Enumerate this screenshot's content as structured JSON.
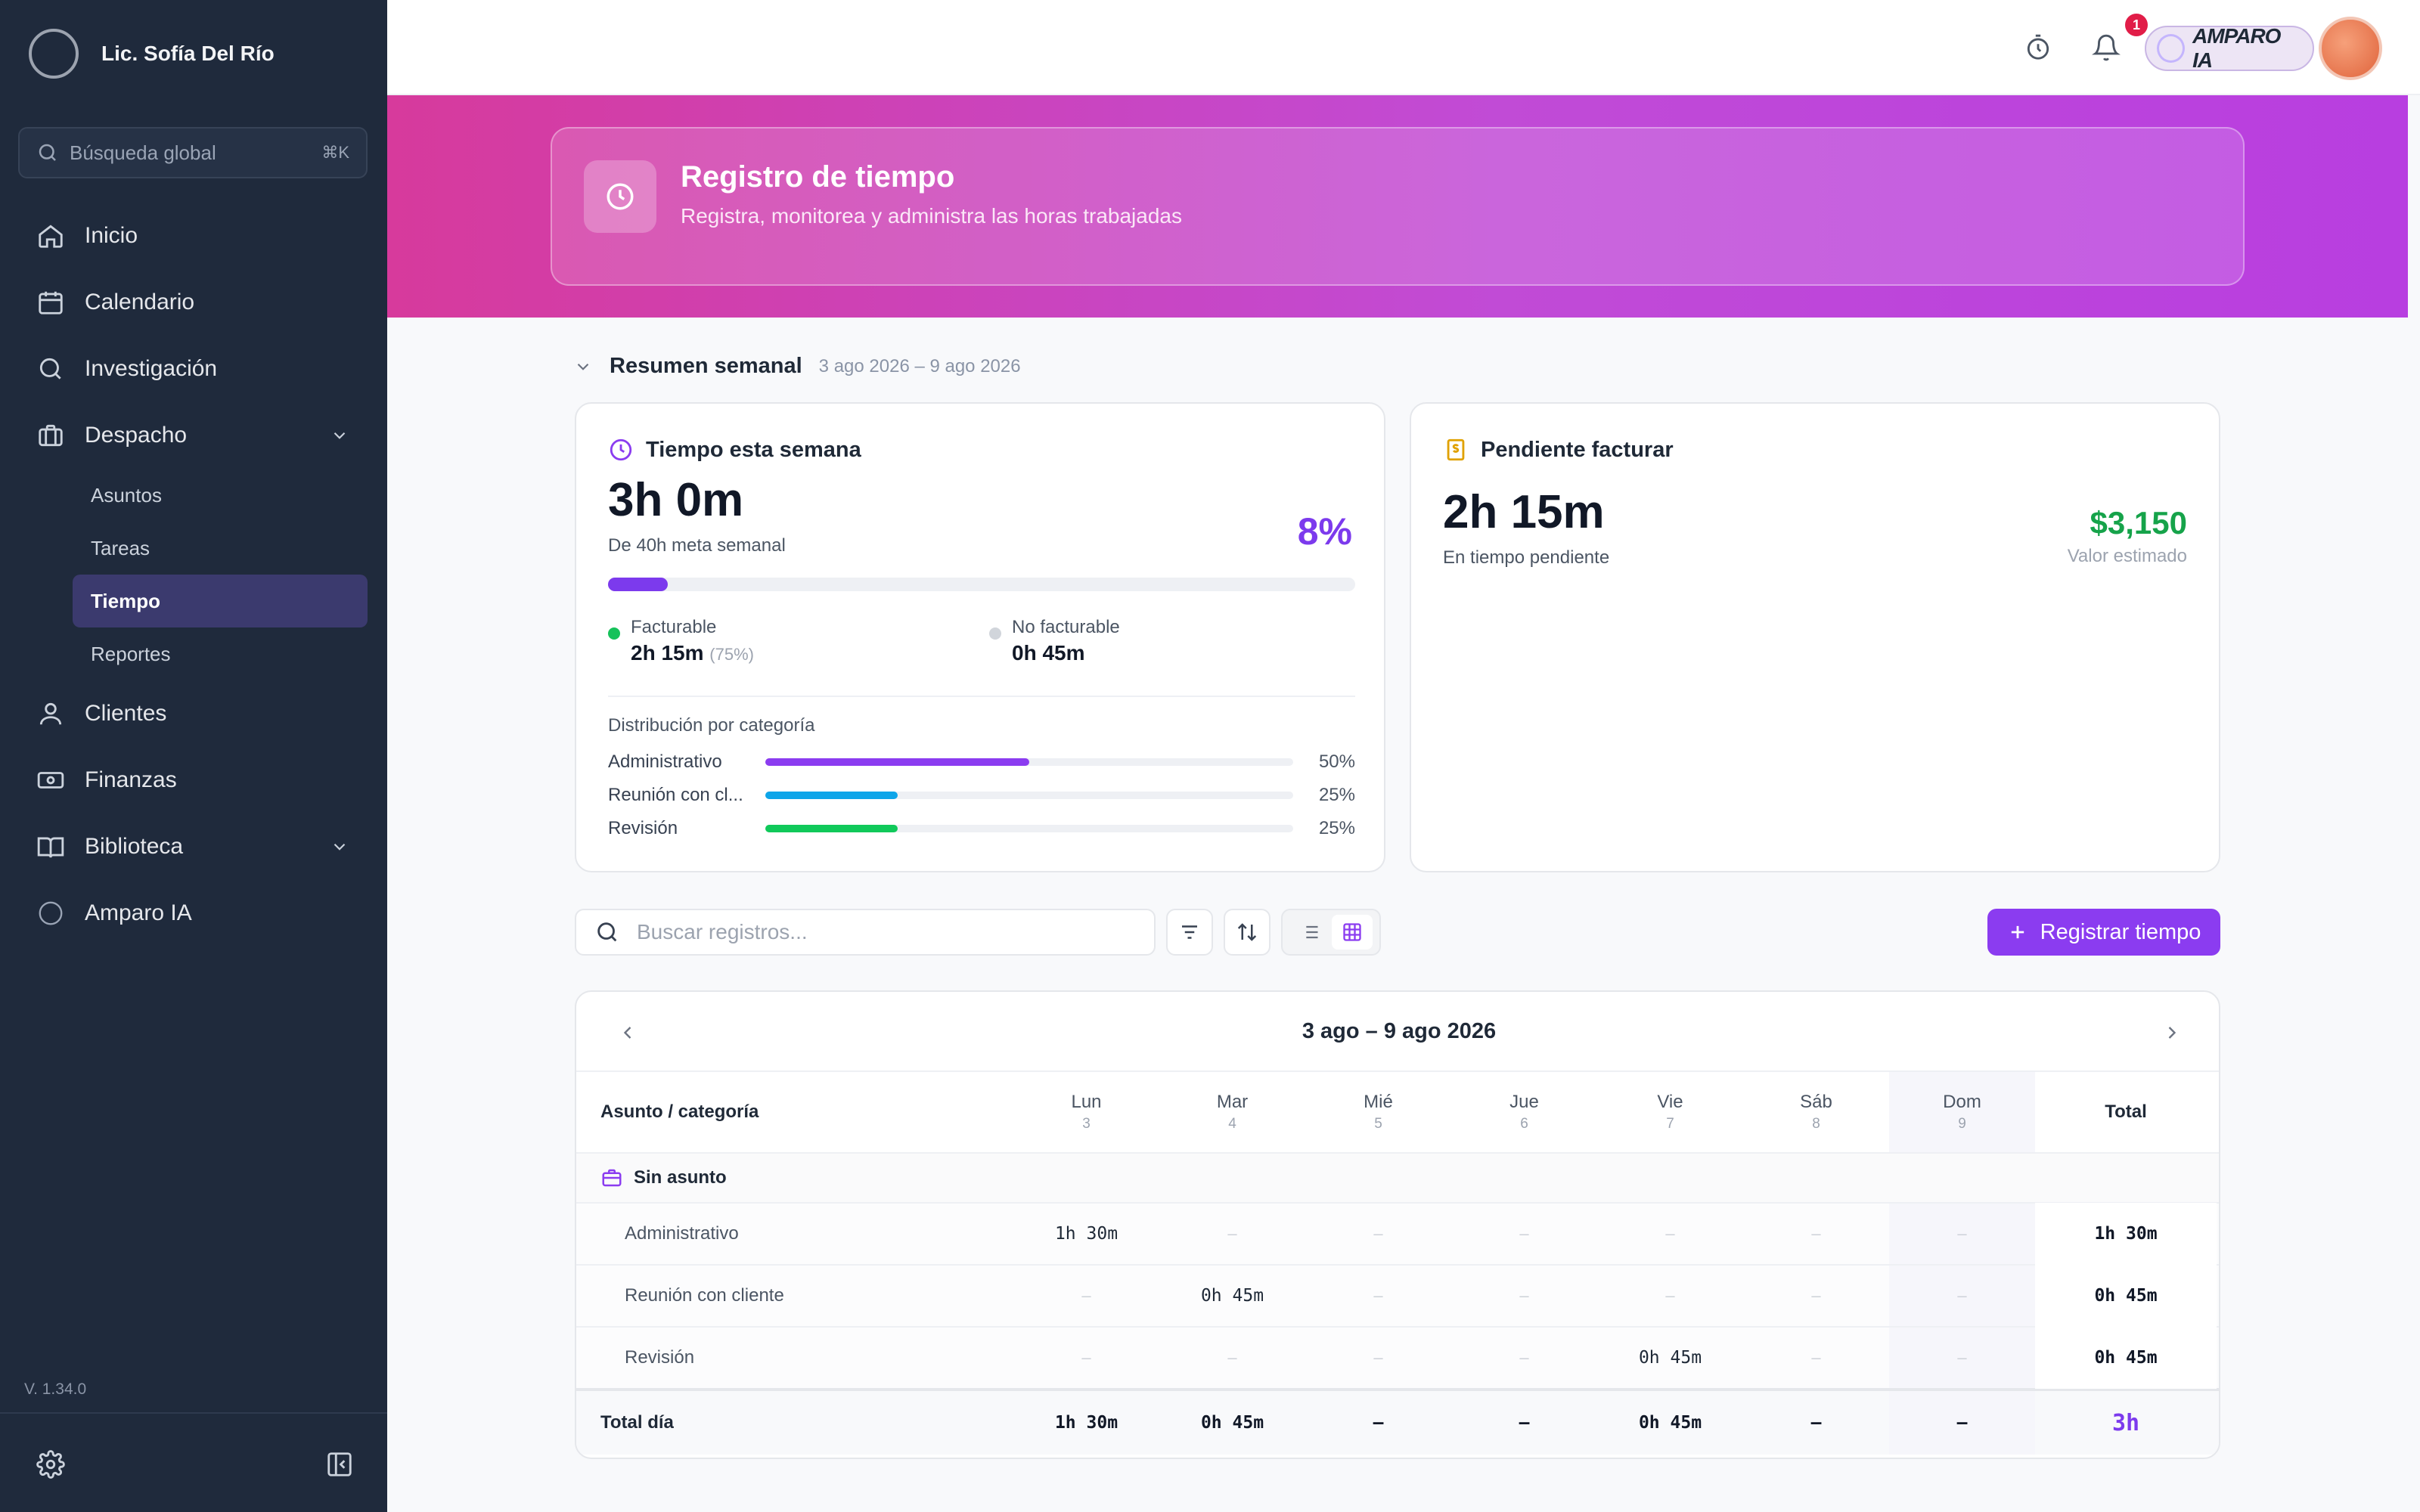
{
  "sidebar": {
    "user_name": "Lic. Sofía Del Río",
    "search": {
      "placeholder": "Búsqueda global",
      "shortcut": "⌘K"
    },
    "nav": [
      {
        "label": "Inicio",
        "icon": "home-icon"
      },
      {
        "label": "Calendario",
        "icon": "calendar-icon"
      },
      {
        "label": "Investigación",
        "icon": "search-icon"
      },
      {
        "label": "Despacho",
        "icon": "briefcase-icon",
        "expanded": true
      },
      {
        "label": "Clientes",
        "icon": "user-icon"
      },
      {
        "label": "Finanzas",
        "icon": "money-icon"
      },
      {
        "label": "Biblioteca",
        "icon": "book-icon",
        "expanded": false
      },
      {
        "label": "Amparo IA",
        "icon": "ai-circle-icon"
      }
    ],
    "subnav": [
      "Asuntos",
      "Tareas",
      "Tiempo",
      "Reportes"
    ],
    "active_sub": "Tiempo",
    "version": "V. 1.34.0"
  },
  "topbar": {
    "notification_count": "1",
    "assistant_label": "AMPARO IA"
  },
  "hero": {
    "title": "Registro de tiempo",
    "subtitle": "Registra, monitorea y administra las horas trabajadas"
  },
  "summary": {
    "title": "Resumen semanal",
    "range": "3 ago 2026 – 9 ago 2026"
  },
  "week_card": {
    "title": "Tiempo esta semana",
    "total": "3h 0m",
    "goal": "De 40h meta semanal",
    "percent": "8%",
    "progress_fraction": 0.08,
    "billable_label": "Facturable",
    "billable_value": "2h 15m",
    "billable_pct": "(75%)",
    "nonbillable_label": "No facturable",
    "nonbillable_value": "0h 45m",
    "categories_title": "Distribución por categoría",
    "categories": [
      {
        "name": "Administrativo",
        "pct": "50%",
        "fraction": 0.5,
        "color": "#8b3cf0"
      },
      {
        "name": "Reunión con cl...",
        "pct": "25%",
        "fraction": 0.25,
        "color": "#0ea5e9"
      },
      {
        "name": "Revisión",
        "pct": "25%",
        "fraction": 0.25,
        "color": "#10c95a"
      }
    ]
  },
  "billing_card": {
    "title": "Pendiente facturar",
    "pending": "2h 15m",
    "pending_label": "En tiempo pendiente",
    "amount": "$3,150",
    "amount_label": "Valor estimado"
  },
  "toolbar": {
    "search_placeholder": "Buscar registros...",
    "primary_label": "Registrar tiempo"
  },
  "timesheet": {
    "range": "3 ago – 9 ago 2026",
    "first_col": "Asunto / categoría",
    "total_col": "Total",
    "days": [
      {
        "name": "Lun",
        "num": "3"
      },
      {
        "name": "Mar",
        "num": "4"
      },
      {
        "name": "Mié",
        "num": "5"
      },
      {
        "name": "Jue",
        "num": "6"
      },
      {
        "name": "Vie",
        "num": "7"
      },
      {
        "name": "Sáb",
        "num": "8"
      },
      {
        "name": "Dom",
        "num": "9"
      }
    ],
    "group": "Sin asunto",
    "rows": [
      {
        "name": "Administrativo",
        "cells": [
          "1h 30m",
          "–",
          "–",
          "–",
          "–",
          "–",
          "–"
        ],
        "total": "1h 30m"
      },
      {
        "name": "Reunión con cliente",
        "cells": [
          "–",
          "0h 45m",
          "–",
          "–",
          "–",
          "–",
          "–"
        ],
        "total": "0h 45m"
      },
      {
        "name": "Revisión",
        "cells": [
          "–",
          "–",
          "–",
          "–",
          "0h 45m",
          "–",
          "–"
        ],
        "total": "0h 45m"
      }
    ],
    "total_label": "Total día",
    "day_totals": [
      "1h 30m",
      "0h 45m",
      "–",
      "–",
      "0h 45m",
      "–",
      "–"
    ],
    "grand_total": "3h"
  }
}
